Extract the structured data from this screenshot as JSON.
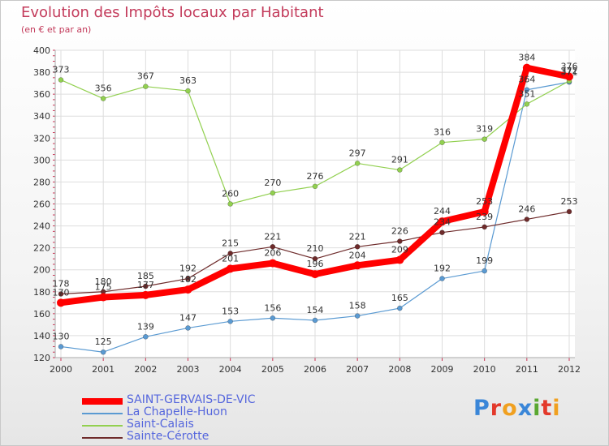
{
  "chart_data": {
    "type": "line",
    "title": "Evolution des Impôts locaux par Habitant",
    "subtitle": "(en € et par an)",
    "x": [
      "2000",
      "2001",
      "2002",
      "2003",
      "2004",
      "2005",
      "2006",
      "2007",
      "2008",
      "2009",
      "2010",
      "2011",
      "2012"
    ],
    "ylim": [
      120,
      400
    ],
    "yticks": [
      120,
      140,
      160,
      180,
      200,
      220,
      240,
      260,
      280,
      300,
      320,
      340,
      360,
      380,
      400
    ],
    "grid": true,
    "series": [
      {
        "name": "SAINT-GERVAIS-DE-VIC",
        "color": "#ff0000",
        "values": [
          170,
          175,
          177,
          182,
          201,
          206,
          196,
          204,
          209,
          244,
          253,
          384,
          376
        ]
      },
      {
        "name": "La Chapelle-Huon",
        "color": "#5a9ad2",
        "values": [
          130,
          125,
          139,
          147,
          153,
          156,
          154,
          158,
          165,
          192,
          199,
          364,
          371
        ]
      },
      {
        "name": "Saint-Calais",
        "color": "#92d050",
        "values": [
          373,
          356,
          367,
          363,
          260,
          270,
          276,
          297,
          291,
          316,
          319,
          351,
          372
        ]
      },
      {
        "name": "Sainte-Cérotte",
        "color": "#6e2b2b",
        "values": [
          178,
          180,
          185,
          192,
          215,
          221,
          210,
          221,
          226,
          234,
          239,
          246,
          253
        ]
      }
    ]
  },
  "logo": {
    "letters": [
      "P",
      "r",
      "o",
      "x",
      "i",
      "t",
      "i"
    ],
    "colors": [
      "#3a86d8",
      "#e3392b",
      "#f0a020",
      "#3a86d8",
      "#5aa832",
      "#e3392b",
      "#f0a020"
    ]
  }
}
